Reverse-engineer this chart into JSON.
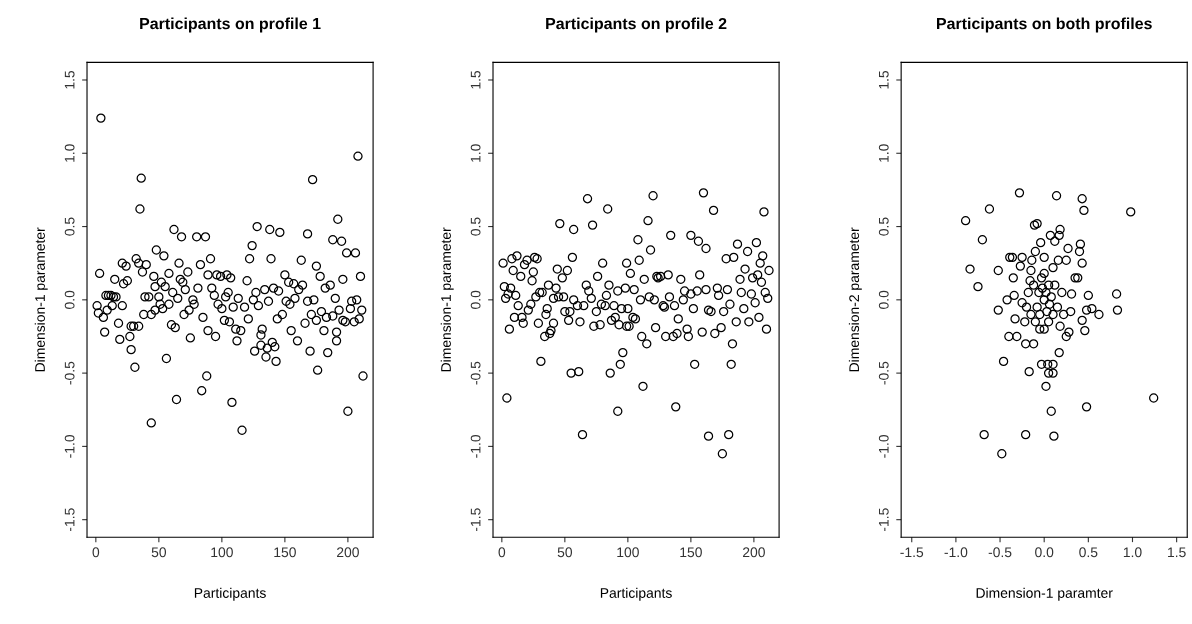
{
  "chart_data": [
    {
      "type": "scatter",
      "title": "Participants on profile 1",
      "xlabel": "Participants",
      "ylabel": "Dimension-1 parameter",
      "marker": "circle",
      "color": "#000000",
      "grid": false,
      "xlim": [
        -7,
        220
      ],
      "ylim": [
        -1.62,
        1.62
      ],
      "xticks": [
        0,
        50,
        100,
        150,
        200
      ],
      "yticks": [
        -1.5,
        {
          "value": -1,
          "label": "-1.0"
        },
        -0.5,
        {
          "value": 0,
          "label": "0.0"
        },
        0.5,
        {
          "value": 1,
          "label": "1.0"
        },
        1.5
      ],
      "x": [
        1,
        2,
        3,
        4,
        6,
        7,
        8,
        9,
        10,
        12,
        13,
        14,
        15,
        16,
        18,
        19,
        21,
        21,
        22,
        24,
        25,
        27,
        28,
        28,
        30,
        31,
        32,
        34,
        34,
        35,
        36,
        37,
        38,
        39,
        40,
        42,
        44,
        44,
        46,
        47,
        47,
        48,
        50,
        51,
        52,
        53,
        54,
        55,
        56,
        58,
        58,
        60,
        61,
        62,
        63,
        64,
        65,
        66,
        67,
        68,
        69,
        70,
        71,
        73,
        74,
        75,
        77,
        78,
        80,
        81,
        83,
        84,
        85,
        87,
        88,
        89,
        89,
        91,
        92,
        94,
        95,
        96,
        97,
        99,
        100,
        102,
        103,
        104,
        105,
        106,
        107,
        108,
        109,
        111,
        112,
        113,
        115,
        116,
        118,
        120,
        121,
        122,
        124,
        125,
        126,
        127,
        128,
        129,
        131,
        131,
        132,
        134,
        135,
        136,
        137,
        138,
        139,
        140,
        141,
        142,
        143,
        144,
        145,
        146,
        148,
        150,
        151,
        153,
        154,
        155,
        157,
        158,
        160,
        161,
        163,
        164,
        166,
        168,
        168,
        170,
        171,
        172,
        173,
        175,
        175,
        176,
        178,
        179,
        181,
        182,
        183,
        184,
        186,
        188,
        188,
        190,
        191,
        191,
        192,
        193,
        195,
        196,
        196,
        198,
        199,
        200,
        202,
        203,
        205,
        206,
        207,
        208,
        209,
        210,
        211,
        212
      ],
      "values": [
        -0.04,
        -0.09,
        0.18,
        1.24,
        -0.12,
        -0.22,
        0.03,
        -0.07,
        0.03,
        0.03,
        -0.04,
        0.02,
        0.14,
        0.02,
        -0.16,
        -0.27,
        0.25,
        -0.04,
        0.11,
        0.23,
        0.13,
        -0.25,
        -0.34,
        -0.18,
        -0.18,
        -0.46,
        0.28,
        -0.18,
        0.25,
        0.62,
        0.83,
        0.19,
        -0.1,
        0.02,
        0.24,
        0.02,
        -0.84,
        -0.1,
        0.16,
        -0.07,
        0.09,
        0.34,
        0.02,
        -0.03,
        0.12,
        -0.06,
        0.3,
        0.09,
        -0.4,
        -0.03,
        0.18,
        -0.17,
        0.05,
        0.48,
        -0.19,
        -0.68,
        0.01,
        0.25,
        0.14,
        0.43,
        0.12,
        -0.1,
        0.07,
        0.19,
        -0.07,
        -0.26,
        0.0,
        -0.03,
        0.43,
        0.08,
        0.24,
        -0.62,
        -0.12,
        0.43,
        -0.52,
        -0.21,
        0.17,
        0.28,
        0.08,
        0.03,
        -0.25,
        0.17,
        -0.03,
        0.16,
        -0.06,
        -0.14,
        0.02,
        0.17,
        0.05,
        -0.15,
        0.15,
        -0.7,
        -0.05,
        -0.2,
        -0.28,
        0.01,
        -0.21,
        -0.89,
        -0.05,
        0.13,
        -0.13,
        0.28,
        0.37,
        0.0,
        -0.35,
        0.05,
        0.5,
        -0.04,
        -0.24,
        -0.31,
        -0.2,
        0.07,
        -0.39,
        -0.33,
        -0.01,
        0.48,
        0.28,
        -0.29,
        0.08,
        -0.32,
        -0.42,
        -0.13,
        0.06,
        0.46,
        -0.1,
        0.17,
        -0.01,
        0.12,
        -0.03,
        -0.21,
        0.11,
        0.01,
        -0.28,
        0.07,
        0.27,
        0.1,
        -0.16,
        0.45,
        -0.01,
        -0.35,
        -0.1,
        0.82,
        0.0,
        0.23,
        -0.14,
        -0.48,
        0.16,
        -0.08,
        -0.21,
        0.08,
        -0.12,
        -0.36,
        0.1,
        -0.11,
        0.41,
        0.01,
        -0.28,
        -0.22,
        0.55,
        -0.07,
        0.4,
        0.14,
        -0.14,
        -0.15,
        0.32,
        -0.76,
        -0.06,
        -0.01,
        -0.15,
        0.32,
        0.0,
        0.98,
        -0.13,
        0.16,
        -0.07,
        -0.52
      ]
    },
    {
      "type": "scatter",
      "title": "Participants on profile 2",
      "xlabel": "Participants",
      "ylabel": "Dimension-1 parameter",
      "marker": "circle",
      "color": "#000000",
      "grid": false,
      "xlim": [
        -7,
        220
      ],
      "ylim": [
        -1.62,
        1.62
      ],
      "xticks": [
        0,
        50,
        100,
        150,
        200
      ],
      "yticks": [
        -1.5,
        {
          "value": -1,
          "label": "-1.0"
        },
        -0.5,
        {
          "value": 0,
          "label": "0.0"
        },
        0.5,
        {
          "value": 1,
          "label": "1.0"
        },
        1.5
      ],
      "x": [
        1,
        2,
        3,
        4,
        5,
        6,
        7,
        8,
        9,
        10,
        11,
        12,
        13,
        15,
        16,
        17,
        18,
        20,
        21,
        23,
        24,
        25,
        26,
        27,
        28,
        29,
        30,
        31,
        32,
        34,
        35,
        36,
        37,
        38,
        39,
        41,
        41,
        43,
        44,
        45,
        46,
        48,
        49,
        50,
        52,
        53,
        54,
        55,
        56,
        57,
        57,
        60,
        61,
        62,
        64,
        65,
        67,
        68,
        69,
        71,
        72,
        73,
        75,
        76,
        78,
        79,
        80,
        82,
        83,
        84,
        85,
        86,
        87,
        89,
        90,
        92,
        92,
        93,
        94,
        95,
        96,
        98,
        99,
        99,
        100,
        101,
        102,
        104,
        105,
        106,
        108,
        109,
        110,
        111,
        112,
        113,
        115,
        116,
        117,
        118,
        120,
        121,
        122,
        123,
        124,
        126,
        128,
        129,
        130,
        132,
        133,
        134,
        136,
        137,
        138,
        139,
        140,
        142,
        144,
        145,
        147,
        148,
        150,
        150,
        152,
        153,
        155,
        156,
        157,
        159,
        160,
        162,
        162,
        164,
        164,
        166,
        168,
        169,
        171,
        172,
        174,
        175,
        176,
        178,
        179,
        180,
        181,
        182,
        183,
        184,
        186,
        187,
        189,
        190,
        192,
        193,
        195,
        196,
        198,
        199,
        201,
        202,
        203,
        204,
        205,
        206,
        207,
        208,
        209,
        210,
        211,
        212
      ],
      "values": [
        0.25,
        0.09,
        0.01,
        -0.67,
        0.04,
        -0.2,
        0.08,
        0.28,
        0.2,
        -0.12,
        0.03,
        0.3,
        -0.04,
        0.16,
        -0.12,
        -0.16,
        0.24,
        0.27,
        -0.07,
        -0.03,
        0.13,
        0.19,
        0.29,
        0.02,
        0.28,
        -0.16,
        0.05,
        -0.42,
        0.05,
        -0.25,
        -0.1,
        -0.06,
        0.1,
        -0.23,
        -0.21,
        -0.16,
        0.01,
        0.08,
        0.21,
        0.02,
        0.52,
        0.15,
        0.02,
        -0.08,
        0.2,
        -0.14,
        -0.08,
        -0.5,
        0.29,
        0.0,
        0.48,
        -0.04,
        -0.49,
        -0.15,
        -0.92,
        -0.04,
        0.1,
        0.69,
        0.06,
        0.01,
        0.51,
        -0.18,
        -0.08,
        0.16,
        -0.17,
        -0.03,
        0.25,
        -0.04,
        0.03,
        0.62,
        0.1,
        -0.5,
        -0.14,
        -0.04,
        -0.12,
        0.06,
        -0.76,
        -0.17,
        -0.44,
        -0.06,
        -0.36,
        0.08,
        -0.18,
        0.25,
        -0.06,
        -0.18,
        0.18,
        -0.12,
        0.07,
        -0.13,
        0.41,
        0.27,
        0.0,
        -0.25,
        -0.59,
        0.14,
        -0.3,
        0.54,
        0.02,
        0.34,
        0.71,
        0.0,
        -0.19,
        0.16,
        0.15,
        0.16,
        -0.04,
        -0.05,
        -0.25,
        0.17,
        0.02,
        0.44,
        -0.25,
        -0.04,
        -0.73,
        -0.23,
        -0.13,
        0.14,
        0.0,
        0.06,
        -0.2,
        -0.25,
        0.44,
        0.04,
        -0.06,
        -0.44,
        0.06,
        0.4,
        0.17,
        -0.22,
        0.73,
        0.07,
        0.35,
        -0.93,
        -0.07,
        -0.08,
        0.61,
        -0.23,
        0.08,
        0.03,
        -0.19,
        -1.05,
        -0.08,
        0.28,
        0.07,
        -0.92,
        -0.03,
        -0.44,
        -0.3,
        0.29,
        -0.15,
        0.38,
        0.14,
        0.05,
        -0.06,
        0.21,
        0.33,
        -0.15,
        0.04,
        0.15,
        -0.02,
        0.39,
        0.17,
        -0.12,
        0.25,
        0.12,
        0.3,
        0.6,
        0.05,
        -0.2,
        0.01,
        0.2
      ]
    },
    {
      "type": "scatter",
      "title": "Participants on both profiles",
      "xlabel": "Dimension-1 paramter",
      "ylabel": "Dimension-2 parameter",
      "marker": "circle",
      "color": "#000000",
      "grid": false,
      "xlim": [
        -1.62,
        1.62
      ],
      "ylim": [
        -1.62,
        1.62
      ],
      "xticks": [
        -1.5,
        {
          "value": -1,
          "label": "-1.0"
        },
        -0.5,
        {
          "value": 0,
          "label": "0.0"
        },
        0.5,
        {
          "value": 1,
          "label": "1.0"
        },
        1.5
      ],
      "yticks": [
        -1.5,
        {
          "value": -1,
          "label": "-1.0"
        },
        -0.5,
        {
          "value": 0,
          "label": "0.0"
        },
        0.5,
        {
          "value": 1,
          "label": "1.0"
        },
        1.5
      ],
      "x": [
        -0.89,
        -0.84,
        -0.75,
        -0.7,
        -0.62,
        -0.68,
        -0.48,
        -0.46,
        -0.52,
        -0.52,
        -0.42,
        -0.4,
        -0.39,
        -0.36,
        -0.35,
        -0.34,
        -0.33,
        -0.31,
        -0.28,
        -0.27,
        -0.25,
        -0.21,
        -0.21,
        -0.17,
        -0.16,
        -0.14,
        -0.12,
        -0.11,
        -0.08,
        -0.1,
        -0.04,
        -0.03,
        0.0,
        0.02,
        0.04,
        0.05,
        0.07,
        0.08,
        0.1,
        0.1,
        0.11,
        0.12,
        0.14,
        0.17,
        0.18,
        0.17,
        0.16,
        0.25,
        0.27,
        0.25,
        0.28,
        0.3,
        0.31,
        0.35,
        0.38,
        0.4,
        0.41,
        0.43,
        0.43,
        0.45,
        0.43,
        0.46,
        0.48,
        0.48,
        0.5,
        0.54,
        0.62,
        0.82,
        0.83,
        0.98,
        1.24,
        -0.2,
        -0.15,
        -0.1,
        -0.05,
        0.0,
        0.05,
        0.1,
        0.15,
        -0.18,
        -0.12,
        -0.06,
        0.0,
        0.02,
        0.05,
        0.08,
        -0.03,
        0.0,
        -0.08,
        0.12,
        0.2,
        0.22,
        -0.22,
        -0.25,
        0.18,
        -0.15,
        0.1,
        -0.05,
        0.03,
        0.06,
        -0.02
      ],
      "values": [
        0.54,
        0.21,
        0.09,
        0.41,
        0.62,
        -0.92,
        -1.05,
        -0.42,
        -0.07,
        0.2,
        0.0,
        -0.25,
        0.29,
        0.29,
        0.15,
        0.03,
        -0.13,
        -0.25,
        0.73,
        0.23,
        0.29,
        -0.3,
        -0.92,
        -0.49,
        0.13,
        0.27,
        -0.3,
        0.51,
        0.52,
        0.33,
        0.39,
        -0.44,
        0.29,
        -0.59,
        -0.44,
        -0.5,
        0.44,
        -0.76,
        -0.44,
        -0.5,
        -0.93,
        0.4,
        0.71,
        -0.36,
        0.48,
        0.44,
        0.27,
        0.27,
        0.35,
        -0.25,
        -0.22,
        -0.08,
        0.04,
        0.15,
        0.15,
        0.33,
        0.38,
        0.25,
        0.69,
        0.61,
        -0.14,
        -0.21,
        -0.07,
        -0.73,
        0.03,
        -0.06,
        -0.1,
        0.04,
        -0.07,
        0.6,
        -0.67,
        -0.05,
        -0.1,
        -0.15,
        -0.2,
        -0.2,
        -0.15,
        -0.1,
        -0.05,
        0.05,
        0.1,
        0.05,
        0.0,
        0.05,
        0.1,
        0.02,
        0.15,
        0.18,
        -0.05,
        0.1,
        0.05,
        -0.1,
        -0.15,
        -0.02,
        -0.18,
        0.2,
        0.22,
        -0.1,
        -0.08,
        -0.03,
        0.08
      ]
    }
  ]
}
